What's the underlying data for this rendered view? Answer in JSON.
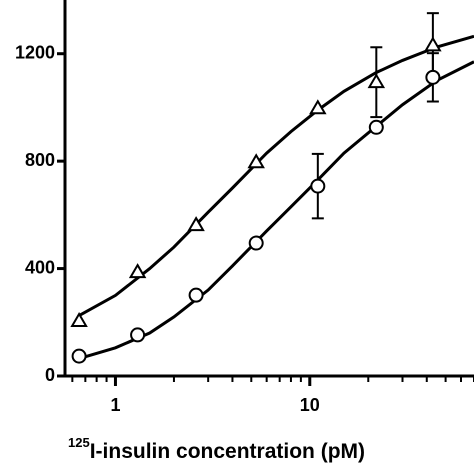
{
  "chart_data": {
    "type": "scatter",
    "x_label_superscript": "125",
    "x_label": "I-insulin concentration (pM)",
    "x_log": true,
    "xlim": [
      0.55,
      70
    ],
    "xticks": [
      1,
      10
    ],
    "xminor_ticks": [
      0.6,
      0.7,
      0.8,
      0.9,
      2,
      3,
      4,
      5,
      6,
      7,
      8,
      9,
      20,
      30,
      40,
      50,
      60,
      70
    ],
    "ylim": [
      0,
      1400
    ],
    "yticks": [
      0,
      400,
      800,
      1200
    ],
    "color": "#000000",
    "series": [
      {
        "marker": "triangle",
        "x": [
          0.65,
          1.3,
          2.6,
          5.3,
          11,
          22,
          43
        ],
        "values": [
          205,
          387,
          562,
          796,
          997,
          1094,
          1231
        ],
        "errors": [
          null,
          null,
          null,
          null,
          null,
          130,
          120
        ]
      },
      {
        "marker": "circle",
        "x": [
          0.65,
          1.3,
          2.6,
          5.3,
          11,
          22,
          43
        ],
        "values": [
          74,
          153,
          301,
          495,
          707,
          926,
          1112
        ],
        "errors": [
          null,
          null,
          null,
          null,
          120,
          null,
          90
        ]
      }
    ],
    "curves": [
      {
        "x": [
          0.65,
          1,
          1.5,
          2,
          3,
          4,
          6,
          8,
          11,
          15,
          22,
          30,
          45,
          70
        ],
        "values": [
          225,
          300,
          400,
          480,
          610,
          700,
          830,
          910,
          990,
          1060,
          1130,
          1175,
          1225,
          1265
        ]
      },
      {
        "x": [
          0.65,
          1,
          1.5,
          2,
          3,
          4,
          6,
          8,
          11,
          15,
          22,
          30,
          45,
          70
        ],
        "values": [
          65,
          105,
          160,
          220,
          320,
          410,
          540,
          630,
          730,
          830,
          930,
          1010,
          1100,
          1170
        ]
      }
    ]
  }
}
